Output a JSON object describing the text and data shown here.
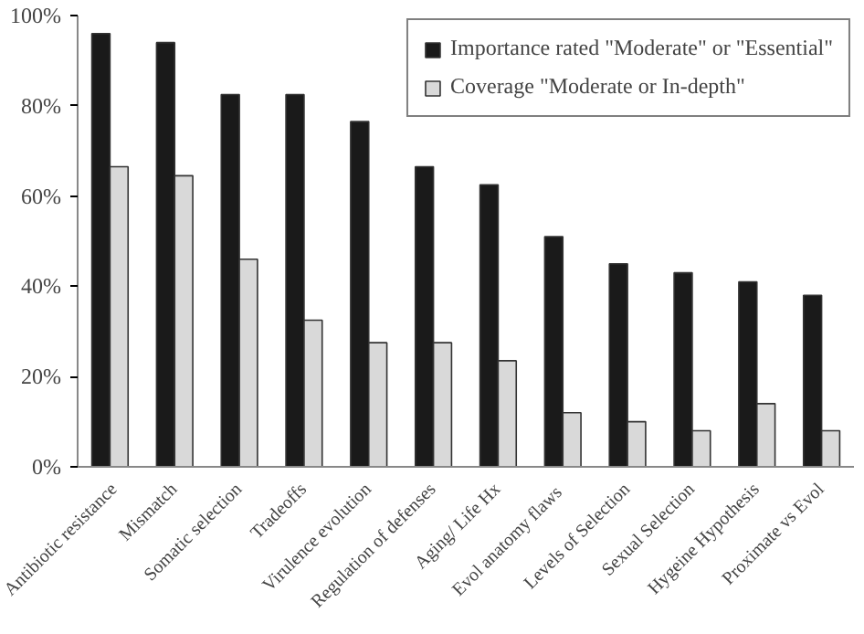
{
  "chart_data": {
    "type": "bar",
    "categories": [
      "Antibiotic resistance",
      "Mismatch",
      "Somatic selection",
      "Tradeoffs",
      "Virulence evolution",
      "Regulation of defenses",
      "Aging/ Life Hx",
      "Evol  anatomy flaws",
      "Levels of Selection",
      "Sexual Selection",
      "Hygeine Hypothesis",
      "Proximate vs Evol"
    ],
    "series": [
      {
        "name": "Importance rated \"Moderate\" or \"Essential\"",
        "color": "#1a1a1a",
        "values": [
          96,
          94,
          82.5,
          82.5,
          76.5,
          66.5,
          62.5,
          51,
          45,
          43,
          41,
          38
        ]
      },
      {
        "name": "Coverage \"Moderate or In-depth\"",
        "color": "#d9d9d9",
        "values": [
          66.5,
          64.5,
          46,
          32.5,
          27.5,
          27.5,
          23.5,
          12,
          10,
          8,
          14,
          8
        ]
      }
    ],
    "ylim": [
      0,
      100
    ],
    "yticks": [
      {
        "value": 0,
        "label": "0%"
      },
      {
        "value": 20,
        "label": "20%"
      },
      {
        "value": 40,
        "label": "40%"
      },
      {
        "value": 60,
        "label": "60%"
      },
      {
        "value": 80,
        "label": "80%"
      },
      {
        "value": 100,
        "label": "100%"
      }
    ],
    "grid": false,
    "legend": "top right"
  }
}
